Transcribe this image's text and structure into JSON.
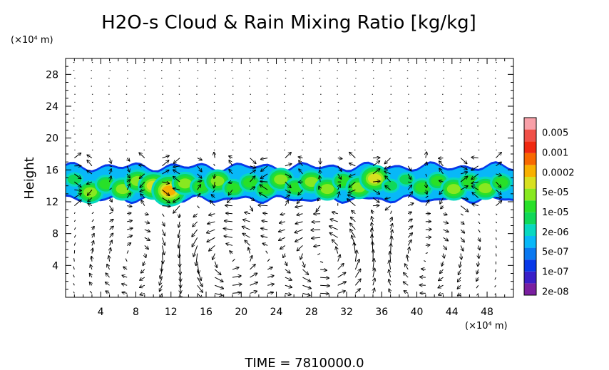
{
  "chart_data": {
    "type": "heatmap",
    "title": "H2O-s Cloud & Rain Mixing Ratio [kg/kg]",
    "ylabel": "Height",
    "x_unit": "(×10⁴ m)",
    "y_unit": "(×10⁴ m)",
    "xlim": [
      0,
      51
    ],
    "ylim": [
      0,
      30
    ],
    "x_ticks": [
      4,
      8,
      12,
      16,
      20,
      24,
      28,
      32,
      36,
      40,
      44,
      48
    ],
    "y_ticks": [
      4,
      8,
      12,
      16,
      20,
      24,
      28
    ],
    "x_tick_labels": [
      "4",
      "8",
      "12",
      "16",
      "20",
      "24",
      "28",
      "32",
      "36",
      "40",
      "44",
      "48"
    ],
    "y_tick_labels": [
      "4",
      "8",
      "12",
      "16",
      "20",
      "24",
      "28"
    ],
    "grid": false,
    "time_label": "TIME  =  7810000.0",
    "colorbar": {
      "labels": [
        "0.005",
        "0.001",
        "0.0002",
        "5e-05",
        "1e-05",
        "2e-06",
        "5e-07",
        "1e-07",
        "2e-08"
      ],
      "levels": [
        {
          "color": "#7a1fa0"
        },
        {
          "color": "#3a1fc8"
        },
        {
          "color": "#0838e8"
        },
        {
          "color": "#0a78f0"
        },
        {
          "color": "#08b8f8"
        },
        {
          "color": "#08d8c0"
        },
        {
          "color": "#10d858"
        },
        {
          "color": "#28e028"
        },
        {
          "color": "#88e820"
        },
        {
          "color": "#d8e020"
        },
        {
          "color": "#f8b000"
        },
        {
          "color": "#f86800"
        },
        {
          "color": "#f02810"
        },
        {
          "color": "#f05048"
        },
        {
          "color": "#f8a0a8"
        }
      ]
    },
    "cloud_layer": {
      "base_height": 12.2,
      "top_height": 16.5,
      "cells": [
        {
          "x": 1.0,
          "y": 14.8,
          "level": 6
        },
        {
          "x": 2.8,
          "y": 13.2,
          "level": 8
        },
        {
          "x": 4.6,
          "y": 14.2,
          "level": 7
        },
        {
          "x": 6.5,
          "y": 13.6,
          "level": 8
        },
        {
          "x": 8.2,
          "y": 14.6,
          "level": 8
        },
        {
          "x": 10.0,
          "y": 14.0,
          "level": 9
        },
        {
          "x": 11.8,
          "y": 13.4,
          "level": 10
        },
        {
          "x": 13.6,
          "y": 14.3,
          "level": 8
        },
        {
          "x": 15.4,
          "y": 13.9,
          "level": 7
        },
        {
          "x": 17.3,
          "y": 14.6,
          "level": 8
        },
        {
          "x": 19.1,
          "y": 13.7,
          "level": 7
        },
        {
          "x": 21.0,
          "y": 14.4,
          "level": 7
        },
        {
          "x": 22.8,
          "y": 13.6,
          "level": 7
        },
        {
          "x": 24.5,
          "y": 14.8,
          "level": 8
        },
        {
          "x": 26.2,
          "y": 13.8,
          "level": 7
        },
        {
          "x": 28.0,
          "y": 14.5,
          "level": 8
        },
        {
          "x": 29.8,
          "y": 13.6,
          "level": 8
        },
        {
          "x": 31.6,
          "y": 14.6,
          "level": 7
        },
        {
          "x": 33.4,
          "y": 13.8,
          "level": 8
        },
        {
          "x": 35.2,
          "y": 14.9,
          "level": 9
        },
        {
          "x": 37.0,
          "y": 14.0,
          "level": 6
        },
        {
          "x": 38.8,
          "y": 14.8,
          "level": 6
        },
        {
          "x": 40.6,
          "y": 13.8,
          "level": 7
        },
        {
          "x": 42.4,
          "y": 14.6,
          "level": 7
        },
        {
          "x": 44.2,
          "y": 13.6,
          "level": 8
        },
        {
          "x": 46.0,
          "y": 14.5,
          "level": 7
        },
        {
          "x": 47.8,
          "y": 13.7,
          "level": 8
        },
        {
          "x": 49.6,
          "y": 14.4,
          "level": 7
        }
      ]
    },
    "wind_vectors": {
      "x_spacing": 2.0,
      "y_spacing": 1.0,
      "circulations": [
        {
          "center_x": 18.0,
          "center_y": 5.0,
          "strength": 1.0
        },
        {
          "center_x": 29.5,
          "center_y": 5.0,
          "strength": 1.0
        },
        {
          "center_x": 8.5,
          "center_y": 5.0,
          "strength": -0.6
        },
        {
          "center_x": 41.0,
          "center_y": 5.0,
          "strength": -0.6
        }
      ]
    }
  }
}
